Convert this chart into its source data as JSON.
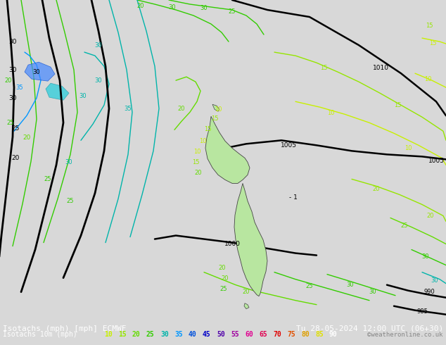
{
  "title_left": "Isotachs (mph) [mph] ECMWF",
  "title_right": "Tu 28-05-2024 12:00 UTC (06+30)",
  "subtitle_left": "Isotachs 10m (mph)",
  "credit": "©weatheronline.co.uk",
  "legend_values": [
    "10",
    "15",
    "20",
    "25",
    "30",
    "35",
    "40",
    "45",
    "50",
    "55",
    "60",
    "65",
    "70",
    "75",
    "80",
    "85",
    "90"
  ],
  "legend_colors": [
    "#c8f000",
    "#96e600",
    "#64dc00",
    "#32cc00",
    "#00b4aa",
    "#0096ff",
    "#0050dc",
    "#0000c8",
    "#5000aa",
    "#a000a0",
    "#e00090",
    "#e00050",
    "#e00000",
    "#e05000",
    "#e0a000",
    "#e0e000",
    "#ffffff"
  ],
  "bg_color": "#d8d8d8",
  "map_bg": "#d8d8d8",
  "land_color": "#b8e6a0",
  "bottom_bar_color": "#000000",
  "font_size_title": 8.0,
  "font_size_legend": 7.0
}
